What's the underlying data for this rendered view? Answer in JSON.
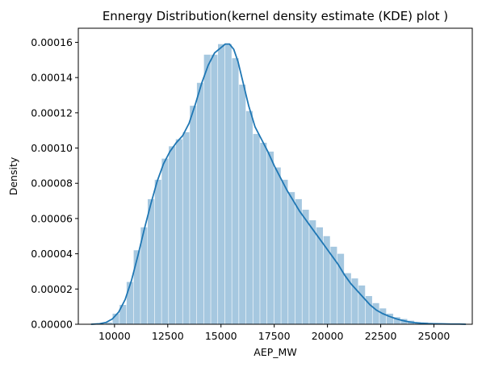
{
  "chart_data": {
    "type": "bar",
    "title": "Ennergy Distribution(kernel density estimate (KDE) plot )",
    "xlabel": "AEP_MW",
    "ylabel": "Density",
    "xlim": [
      8300,
      26800
    ],
    "ylim": [
      0,
      0.000168
    ],
    "x_ticks": [
      10000,
      12500,
      15000,
      17500,
      20000,
      22500,
      25000
    ],
    "x_tick_labels": [
      "10000",
      "12500",
      "15000",
      "17500",
      "20000",
      "22500",
      "25000"
    ],
    "y_ticks": [
      0,
      2e-05,
      4e-05,
      6e-05,
      8e-05,
      0.0001,
      0.00012,
      0.00014,
      0.00016
    ],
    "y_tick_labels": [
      "0.00000",
      "0.00002",
      "0.00004",
      "0.00006",
      "0.00008",
      "0.00010",
      "0.00012",
      "0.00014",
      "0.00016"
    ],
    "histogram": {
      "bin_edges": [
        9580,
        9910,
        10240,
        10570,
        10900,
        11230,
        11560,
        11890,
        12220,
        12550,
        12880,
        13210,
        13540,
        13870,
        14200,
        14530,
        14860,
        15190,
        15520,
        15850,
        16180,
        16510,
        16840,
        17170,
        17500,
        17830,
        18160,
        18490,
        18820,
        19150,
        19480,
        19810,
        20140,
        20470,
        20800,
        21130,
        21460,
        21790,
        22120,
        22450,
        22780,
        23110,
        23440,
        23770,
        24100,
        24430,
        24760,
        25090
      ],
      "values": [
        1e-06,
        6e-06,
        1.1e-05,
        2.4e-05,
        4.2e-05,
        5.5e-05,
        7.1e-05,
        8.2e-05,
        9.4e-05,
        0.000101,
        0.000105,
        0.000109,
        0.000124,
        0.000137,
        0.000153,
        0.000153,
        0.000159,
        0.000159,
        0.000151,
        0.000136,
        0.000121,
        0.000108,
        0.000103,
        9.8e-05,
        8.9e-05,
        8.2e-05,
        7.5e-05,
        7.1e-05,
        6.5e-05,
        5.9e-05,
        5.5e-05,
        5e-05,
        4.4e-05,
        4e-05,
        2.9e-05,
        2.6e-05,
        2.2e-05,
        1.6e-05,
        1.2e-05,
        9e-06,
        6e-06,
        4e-06,
        3e-06,
        2e-06,
        1e-06,
        1e-06,
        5e-07
      ],
      "color": "#a6c8e0"
    },
    "kde": {
      "x": [
        8900,
        9300,
        9600,
        9900,
        10200,
        10500,
        10800,
        11100,
        11400,
        11700,
        12000,
        12300,
        12600,
        12900,
        13200,
        13500,
        13800,
        14100,
        14400,
        14700,
        15000,
        15200,
        15400,
        15600,
        15800,
        16000,
        16300,
        16600,
        16900,
        17200,
        17500,
        17800,
        18100,
        18400,
        18700,
        19000,
        19300,
        19600,
        19900,
        20200,
        20500,
        20800,
        21100,
        21400,
        21700,
        22000,
        22300,
        22600,
        22900,
        23200,
        23500,
        23800,
        24100,
        24400,
        24700,
        25000,
        25400,
        25800,
        26200,
        26500
      ],
      "y": [
        0.0,
        3e-07,
        1e-06,
        3e-06,
        7e-06,
        1.4e-05,
        2.5e-05,
        3.9e-05,
        5.4e-05,
        6.8e-05,
        8.1e-05,
        9.1e-05,
        9.8e-05,
        0.000103,
        0.000107,
        0.000114,
        0.000125,
        0.000137,
        0.000147,
        0.000154,
        0.000157,
        0.000159,
        0.000159,
        0.000156,
        0.000149,
        0.000139,
        0.000124,
        0.000112,
        0.000105,
        9.8e-05,
        9e-05,
        8.3e-05,
        7.6e-05,
        7e-05,
        6.4e-05,
        5.9e-05,
        5.4e-05,
        4.9e-05,
        4.4e-05,
        3.9e-05,
        3.4e-05,
        2.8e-05,
        2.3e-05,
        1.9e-05,
        1.5e-05,
        1.1e-05,
        8e-06,
        6e-06,
        4.5e-06,
        3.2e-06,
        2.2e-06,
        1.4e-06,
        9e-07,
        6e-07,
        4e-07,
        3e-07,
        2e-07,
        1e-07,
        1e-07,
        0.0
      ],
      "color": "#1f77b4"
    }
  }
}
